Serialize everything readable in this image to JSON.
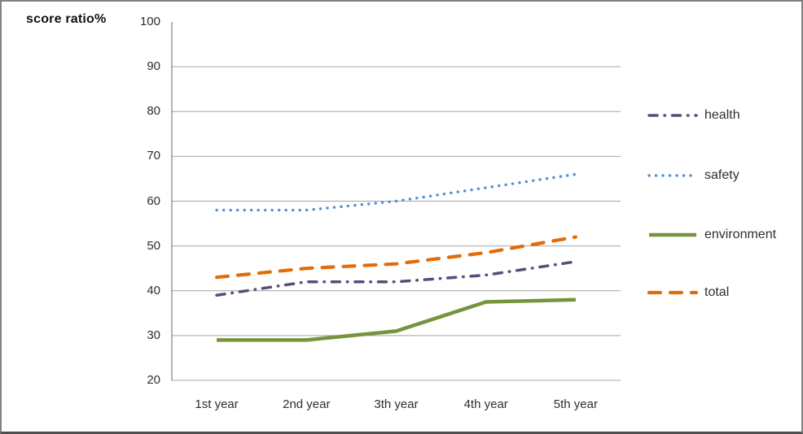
{
  "chart_data": {
    "type": "line",
    "title": "score ratio%",
    "categories": [
      "1st year",
      "2nd year",
      "3th year",
      "4th year",
      "5th year"
    ],
    "series": [
      {
        "name": "health",
        "values": [
          39,
          42,
          42,
          43.5,
          46.5
        ],
        "color": "#5F497A",
        "style": "dashdot"
      },
      {
        "name": "safety",
        "values": [
          58,
          58,
          60,
          63,
          66
        ],
        "color": "#568ED5",
        "style": "dotted"
      },
      {
        "name": "environment",
        "values": [
          29,
          29,
          31,
          37.5,
          38
        ],
        "color": "#77933C",
        "style": "solid"
      },
      {
        "name": "total",
        "values": [
          43,
          45,
          46,
          48.5,
          52
        ],
        "color": "#E36C09",
        "style": "dashed"
      }
    ],
    "yticks": [
      100,
      90,
      80,
      70,
      60,
      50,
      40,
      30,
      20
    ],
    "ylim": [
      20,
      100
    ],
    "grid": true,
    "legend_position": "right",
    "axis_color": "#808080",
    "grid_color": "#a3a3a3"
  }
}
